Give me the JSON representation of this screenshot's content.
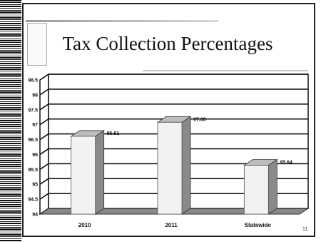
{
  "slide": {
    "title": "Tax Collection Percentages",
    "page_number": "11"
  },
  "chart_data": {
    "type": "bar",
    "categories": [
      "2010",
      "2011",
      "Statewide"
    ],
    "values": [
      96.61,
      97.08,
      95.64
    ],
    "data_labels": [
      "96.61",
      "97.08",
      "95.64"
    ],
    "y_ticks": [
      "94",
      "94.5",
      "95",
      "95.5",
      "96",
      "96.5",
      "97",
      "97.5",
      "98",
      "98.5"
    ],
    "ylim": [
      94,
      98.5
    ],
    "grid": true,
    "three_d": true,
    "title": "Tax Collection Percentages",
    "xlabel": "",
    "ylabel": "",
    "colors": {
      "bar_front": "#f2f2f2",
      "bar_side": "#8a8a8a",
      "bar_top": "#bdbdbd",
      "floor": "#888888",
      "grid": "#111111"
    }
  }
}
